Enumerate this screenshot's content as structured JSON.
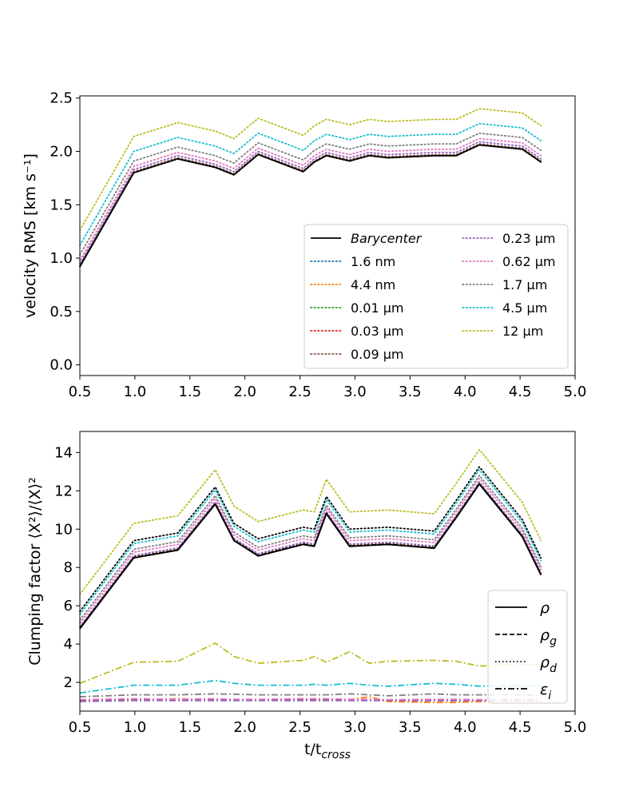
{
  "colors": {
    "black": "#000000",
    "blue": "#1f77b4",
    "orange": "#ff7f0e",
    "green": "#2ca02c",
    "red": "#d62728",
    "brown": "#8c564b",
    "purple": "#9467bd",
    "pink": "#e377c2",
    "gray": "#7f7f7f",
    "cyan": "#17becf",
    "olive": "#bcbd22"
  },
  "chart_data": [
    {
      "type": "line",
      "title": "",
      "xlabel": "",
      "ylabel": "velocity RMS [km s⁻¹]",
      "xlim": [
        0.5,
        5.0
      ],
      "ylim": [
        -0.1,
        2.52
      ],
      "xticks": [
        0.5,
        1.0,
        1.5,
        2.0,
        2.5,
        3.0,
        3.5,
        4.0,
        4.5,
        5.0
      ],
      "xtick_labels": [
        "0.5",
        "1.0",
        "1.5",
        "2.0",
        "2.5",
        "3.0",
        "3.5",
        "4.0",
        "4.5",
        "5.0"
      ],
      "yticks": [
        0.0,
        0.5,
        1.0,
        1.5,
        2.0,
        2.5
      ],
      "ytick_labels": [
        "0.0",
        "0.5",
        "1.0",
        "1.5",
        "2.0",
        "2.5"
      ],
      "legend_position": "lower-right",
      "x": [
        0.5,
        0.99,
        1.39,
        1.73,
        1.9,
        2.12,
        2.53,
        2.63,
        2.74,
        2.95,
        3.13,
        3.3,
        3.72,
        3.92,
        4.13,
        4.52,
        4.69
      ],
      "base": [
        0.92,
        1.8,
        1.93,
        1.85,
        1.78,
        1.97,
        1.81,
        1.9,
        1.96,
        1.91,
        1.96,
        1.94,
        1.96,
        1.96,
        2.06,
        2.02,
        1.9
      ],
      "series": [
        {
          "name": "Barycenter",
          "color_key": "black",
          "style": "solid",
          "offset": 0.0
        },
        {
          "name": "1.6 nm",
          "color_key": "blue",
          "style": "dotted",
          "offset": 0.0
        },
        {
          "name": "4.4 nm",
          "color_key": "orange",
          "style": "dotted",
          "offset": 0.0
        },
        {
          "name": "0.01 μm",
          "color_key": "green",
          "style": "dotted",
          "offset": 0.0
        },
        {
          "name": "0.03 μm",
          "color_key": "red",
          "style": "dotted",
          "offset": 0.0
        },
        {
          "name": "0.09 μm",
          "color_key": "brown",
          "style": "dotted",
          "offset": 0.01
        },
        {
          "name": "0.23 μm",
          "color_key": "purple",
          "style": "dotted",
          "offset": 0.03
        },
        {
          "name": "0.62 μm",
          "color_key": "pink",
          "style": "dotted",
          "offset": 0.06
        },
        {
          "name": "1.7 μm",
          "color_key": "gray",
          "style": "dotted",
          "offset": 0.11
        },
        {
          "name": "4.5 μm",
          "color_key": "cyan",
          "style": "dotted",
          "offset": 0.2
        },
        {
          "name": "12 μm",
          "color_key": "olive",
          "style": "dotted",
          "offset": 0.34
        }
      ]
    },
    {
      "type": "line",
      "title": "",
      "xlabel": "t/t",
      "xlabel_sub": "cross",
      "ylabel": "Clumping factor ⟨X²⟩/⟨X⟩²",
      "xlim": [
        0.5,
        5.0
      ],
      "ylim": [
        0.5,
        15.1
      ],
      "xticks": [
        0.5,
        1.0,
        1.5,
        2.0,
        2.5,
        3.0,
        3.5,
        4.0,
        4.5,
        5.0
      ],
      "xtick_labels": [
        "0.5",
        "1.0",
        "1.5",
        "2.0",
        "2.5",
        "3.0",
        "3.5",
        "4.0",
        "4.5",
        "5.0"
      ],
      "yticks": [
        2,
        4,
        6,
        8,
        10,
        12,
        14
      ],
      "ytick_labels": [
        "2",
        "4",
        "6",
        "8",
        "10",
        "12",
        "14"
      ],
      "legend_position": "lower-right",
      "legend": [
        {
          "symbol": "ρ",
          "sub": "",
          "style": "solid"
        },
        {
          "symbol": "ρ",
          "sub": "g",
          "style": "dashed"
        },
        {
          "symbol": "ρ",
          "sub": "d",
          "style": "dotted"
        },
        {
          "symbol": "ε",
          "sub": "i",
          "style": "dashdot"
        }
      ],
      "x": [
        0.5,
        0.99,
        1.39,
        1.73,
        1.9,
        2.12,
        2.53,
        2.63,
        2.74,
        2.95,
        3.13,
        3.3,
        3.72,
        3.92,
        4.13,
        4.52,
        4.69
      ],
      "density_base": [
        4.8,
        8.5,
        8.9,
        11.3,
        9.4,
        8.6,
        9.2,
        9.1,
        10.8,
        9.1,
        9.15,
        9.2,
        9.0,
        10.6,
        12.35,
        9.6,
        7.6
      ],
      "density_series": [
        {
          "name": "rho",
          "color_key": "black",
          "style": "solid",
          "offset": 0.0
        },
        {
          "name": "rho_g",
          "color_key": "black",
          "style": "dashed",
          "offset": 0.02
        },
        {
          "name": "rho_d 1.6 nm",
          "color_key": "brown",
          "style": "dotted",
          "offset": 0.05
        },
        {
          "name": "rho_d 0.23 um",
          "color_key": "purple",
          "style": "dotted",
          "offset": 0.12
        },
        {
          "name": "rho_d 0.62 um",
          "color_key": "pink",
          "style": "dotted",
          "offset": 0.3
        },
        {
          "name": "rho_d 1.7 um",
          "color_key": "gray",
          "style": "dotted",
          "offset": 0.45
        },
        {
          "name": "rho_d total",
          "color_key": "black",
          "style": "dotted",
          "offset": 0.9
        },
        {
          "name": "rho_d 4.5 um",
          "color_key": "cyan",
          "style": "dotted",
          "offset": 0.75
        },
        {
          "name": "rho_d 12 um",
          "color_key": "olive",
          "style": "dotted",
          "offset": 1.8
        }
      ],
      "eps_series": [
        {
          "name": "eps olive",
          "color_key": "olive",
          "style": "dashdot",
          "x": [
            0.5,
            0.99,
            1.39,
            1.73,
            1.9,
            2.12,
            2.53,
            2.63,
            2.74,
            2.95,
            3.13,
            3.3,
            3.72,
            3.92,
            4.13,
            4.52,
            4.69
          ],
          "values": [
            1.95,
            3.05,
            3.1,
            4.05,
            3.35,
            3.0,
            3.15,
            3.35,
            3.05,
            3.6,
            3.0,
            3.1,
            3.15,
            3.1,
            2.85,
            2.95,
            2.9
          ]
        },
        {
          "name": "eps cyan",
          "color_key": "cyan",
          "style": "dashdot",
          "x": [
            0.5,
            0.99,
            1.39,
            1.73,
            1.9,
            2.12,
            2.53,
            2.63,
            2.74,
            2.95,
            3.13,
            3.3,
            3.72,
            3.92,
            4.13,
            4.52,
            4.69
          ],
          "values": [
            1.45,
            1.85,
            1.85,
            2.1,
            1.95,
            1.85,
            1.85,
            1.9,
            1.85,
            1.95,
            1.85,
            1.8,
            1.95,
            1.9,
            1.8,
            1.85,
            1.8
          ]
        },
        {
          "name": "eps gray",
          "color_key": "gray",
          "style": "dashdot",
          "x": [
            0.5,
            0.99,
            1.39,
            1.73,
            1.9,
            2.12,
            2.53,
            2.63,
            2.74,
            2.95,
            3.13,
            3.3,
            3.72,
            3.92,
            4.13,
            4.52,
            4.69
          ],
          "values": [
            1.25,
            1.35,
            1.35,
            1.4,
            1.38,
            1.35,
            1.35,
            1.35,
            1.35,
            1.4,
            1.35,
            1.3,
            1.4,
            1.35,
            1.35,
            1.35,
            1.3
          ]
        },
        {
          "name": "eps orange",
          "color_key": "orange",
          "style": "dashdot",
          "x": [
            0.5,
            0.99,
            1.39,
            1.73,
            1.9,
            2.12,
            2.53,
            2.63,
            2.74,
            2.95,
            3.13,
            3.3,
            3.72,
            3.92,
            4.13,
            4.52,
            4.69
          ],
          "values": [
            1.05,
            1.1,
            1.15,
            1.1,
            1.08,
            1.1,
            1.15,
            1.1,
            1.1,
            1.1,
            1.25,
            1.0,
            0.95,
            0.95,
            1.0,
            1.05,
            1.0
          ]
        },
        {
          "name": "eps brown",
          "color_key": "brown",
          "style": "dashdot",
          "x": [
            0.5,
            0.99,
            1.39,
            1.73,
            1.9,
            2.12,
            2.53,
            2.63,
            2.74,
            2.95,
            3.13,
            3.3,
            3.72,
            3.92,
            4.13,
            4.52,
            4.69
          ],
          "values": [
            1.05,
            1.12,
            1.1,
            1.12,
            1.1,
            1.1,
            1.1,
            1.1,
            1.12,
            1.1,
            1.1,
            1.05,
            1.05,
            1.05,
            1.05,
            1.05,
            1.0
          ]
        },
        {
          "name": "eps purple",
          "color_key": "purple",
          "style": "dashdot",
          "x": [
            0.5,
            0.99,
            1.39,
            1.73,
            1.9,
            2.12,
            2.53,
            2.63,
            2.74,
            2.95,
            3.13,
            3.3,
            3.72,
            3.92,
            4.13,
            4.52,
            4.69
          ],
          "values": [
            1.0,
            1.05,
            1.05,
            1.05,
            1.05,
            1.05,
            1.05,
            1.05,
            1.05,
            1.05,
            1.05,
            1.05,
            1.05,
            1.05,
            1.05,
            1.05,
            1.0
          ]
        },
        {
          "name": "eps pink",
          "color_key": "pink",
          "style": "dashdot",
          "x": [
            0.5,
            0.99,
            1.39,
            1.73,
            1.9,
            2.12,
            2.53,
            2.63,
            2.74,
            2.95,
            3.13,
            3.3,
            3.72,
            3.92,
            4.13,
            4.52,
            4.69
          ],
          "values": [
            1.1,
            1.15,
            1.12,
            1.15,
            1.12,
            1.12,
            1.15,
            1.15,
            1.15,
            1.12,
            1.12,
            1.1,
            1.12,
            1.12,
            1.1,
            1.12,
            1.1
          ]
        }
      ]
    }
  ]
}
